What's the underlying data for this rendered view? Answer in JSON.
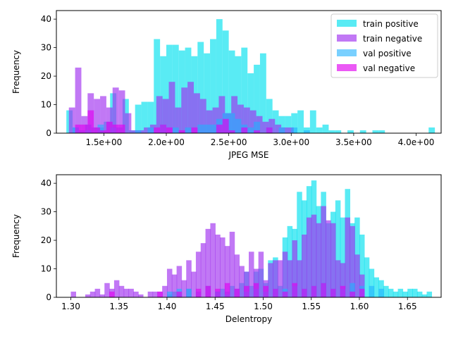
{
  "colors": {
    "train_positive": "#00e1ee",
    "train_negative": "#a030f0",
    "val_positive": "#20b0ff",
    "val_negative": "#e000f0"
  },
  "chart_data": [
    {
      "type": "histogram",
      "xlabel": "JPEG MSE",
      "ylabel": "Frequency",
      "xlim": [
        1.12,
        4.2
      ],
      "ylim": [
        0,
        43
      ],
      "xticks": [
        1.5,
        2.0,
        2.5,
        3.0,
        3.5,
        4.0
      ],
      "xtick_labels": [
        "1.5e+00",
        "2.0e+00",
        "2.5e+00",
        "3.0e+00",
        "3.5e+00",
        "4.0e+00"
      ],
      "yticks": [
        0,
        10,
        20,
        30,
        40
      ],
      "ytick_labels": [
        "0",
        "10",
        "20",
        "30",
        "40"
      ],
      "bin_width": 0.05,
      "legend": {
        "position": "top-right",
        "entries": [
          "train positive",
          "train negative",
          "val positive",
          "val negative"
        ]
      },
      "series": [
        {
          "name": "train positive",
          "x": [
            1.2,
            1.25,
            1.3,
            1.35,
            1.4,
            1.45,
            1.5,
            1.55,
            1.6,
            1.65,
            1.7,
            1.75,
            1.8,
            1.85,
            1.9,
            1.95,
            2.0,
            2.05,
            2.1,
            2.15,
            2.2,
            2.25,
            2.3,
            2.35,
            2.4,
            2.45,
            2.5,
            2.55,
            2.6,
            2.65,
            2.7,
            2.75,
            2.8,
            2.85,
            2.9,
            2.95,
            3.0,
            3.05,
            3.1,
            3.15,
            3.2,
            3.25,
            3.3,
            3.35,
            3.45,
            3.55,
            3.65,
            3.7,
            4.1
          ],
          "values": [
            8,
            2,
            1,
            3,
            2,
            2,
            4,
            14,
            2,
            12,
            1,
            10,
            11,
            11,
            33,
            27,
            31,
            31,
            29,
            30,
            27,
            32,
            28,
            33,
            40,
            36,
            29,
            27,
            30,
            21,
            24,
            28,
            12,
            8,
            6,
            6,
            7,
            8,
            2,
            8,
            2,
            3,
            1,
            1,
            1,
            1,
            1,
            1,
            2
          ]
        },
        {
          "name": "train negative",
          "x": [
            1.22,
            1.27,
            1.32,
            1.37,
            1.42,
            1.47,
            1.52,
            1.57,
            1.62,
            1.67,
            1.72,
            1.77,
            1.82,
            1.87,
            1.92,
            1.97,
            2.02,
            2.07,
            2.12,
            2.17,
            2.22,
            2.27,
            2.32,
            2.37,
            2.42,
            2.47,
            2.52,
            2.57,
            2.62,
            2.67,
            2.72,
            2.77,
            2.82,
            2.87,
            2.92,
            2.97
          ],
          "values": [
            9,
            23,
            6,
            14,
            12,
            13,
            9,
            16,
            15,
            7,
            1,
            1,
            2,
            3,
            13,
            12,
            18,
            9,
            16,
            18,
            14,
            12,
            8,
            9,
            13,
            7,
            13,
            10,
            9,
            8,
            6,
            4,
            5,
            3,
            2,
            2
          ]
        },
        {
          "name": "val positive",
          "x": [
            1.25,
            1.35,
            1.45,
            1.55,
            1.75,
            1.85,
            1.95,
            2.05,
            2.15,
            2.25,
            2.3,
            2.35,
            2.4,
            2.45,
            2.5,
            2.55,
            2.6,
            2.65,
            2.7,
            2.8,
            2.9,
            3.0,
            3.1
          ],
          "values": [
            2,
            1,
            3,
            2,
            1,
            2,
            3,
            2,
            2,
            3,
            3,
            3,
            5,
            7,
            7,
            5,
            3,
            2,
            4,
            2,
            2,
            2,
            1
          ]
        },
        {
          "name": "val negative",
          "x": [
            1.27,
            1.32,
            1.37,
            1.42,
            1.47,
            1.52,
            1.57,
            1.62,
            1.9,
            1.95,
            2.0,
            2.1,
            2.2,
            2.4,
            2.45,
            2.5,
            2.6,
            2.7,
            2.8
          ],
          "values": [
            3,
            3,
            8,
            2,
            1,
            4,
            3,
            3,
            2,
            3,
            2,
            1,
            2,
            3,
            5,
            1,
            2,
            1,
            2
          ]
        }
      ]
    },
    {
      "type": "histogram",
      "xlabel": "Delentropy",
      "ylabel": "Frequency",
      "xlim": [
        1.285,
        1.685
      ],
      "ylim": [
        0,
        43
      ],
      "xticks": [
        1.3,
        1.35,
        1.4,
        1.45,
        1.5,
        1.55,
        1.6,
        1.65
      ],
      "xtick_labels": [
        "1.30",
        "1.35",
        "1.40",
        "1.45",
        "1.50",
        "1.55",
        "1.60",
        "1.65"
      ],
      "yticks": [
        0,
        10,
        20,
        30,
        40
      ],
      "ytick_labels": [
        "0",
        "10",
        "20",
        "30",
        "40"
      ],
      "bin_width": 0.0055,
      "series": [
        {
          "name": "train positive",
          "x": [
            1.4,
            1.405,
            1.41,
            1.42,
            1.43,
            1.44,
            1.45,
            1.455,
            1.46,
            1.465,
            1.47,
            1.475,
            1.48,
            1.485,
            1.49,
            1.495,
            1.5,
            1.505,
            1.51,
            1.515,
            1.52,
            1.525,
            1.53,
            1.535,
            1.54,
            1.545,
            1.55,
            1.555,
            1.56,
            1.565,
            1.57,
            1.575,
            1.58,
            1.585,
            1.59,
            1.595,
            1.6,
            1.605,
            1.61,
            1.615,
            1.62,
            1.625,
            1.63,
            1.635,
            1.64,
            1.645,
            1.65,
            1.655,
            1.66,
            1.665,
            1.67
          ],
          "values": [
            1,
            2,
            1,
            3,
            2,
            4,
            2,
            3,
            2,
            4,
            3,
            5,
            9,
            4,
            9,
            10,
            5,
            13,
            14,
            4,
            21,
            25,
            24,
            37,
            34,
            39,
            41,
            32,
            37,
            26,
            30,
            34,
            28,
            38,
            26,
            28,
            22,
            14,
            10,
            7,
            6,
            4,
            3,
            2,
            3,
            2,
            3,
            3,
            2,
            1,
            2
          ]
        },
        {
          "name": "train negative",
          "x": [
            1.3,
            1.315,
            1.32,
            1.325,
            1.33,
            1.335,
            1.34,
            1.345,
            1.35,
            1.355,
            1.36,
            1.365,
            1.37,
            1.38,
            1.385,
            1.39,
            1.395,
            1.4,
            1.405,
            1.41,
            1.415,
            1.42,
            1.425,
            1.43,
            1.435,
            1.44,
            1.445,
            1.45,
            1.455,
            1.46,
            1.465,
            1.47,
            1.475,
            1.48,
            1.485,
            1.49,
            1.495,
            1.5,
            1.505,
            1.51,
            1.515,
            1.52,
            1.525,
            1.53,
            1.535,
            1.54,
            1.545,
            1.55,
            1.555,
            1.56,
            1.565,
            1.57,
            1.575,
            1.58,
            1.585,
            1.59,
            1.595,
            1.6
          ],
          "values": [
            2,
            1,
            2,
            3,
            1,
            5,
            3,
            6,
            4,
            3,
            3,
            2,
            1,
            2,
            2,
            2,
            4,
            10,
            8,
            11,
            6,
            13,
            9,
            16,
            19,
            24,
            26,
            22,
            21,
            18,
            23,
            15,
            11,
            9,
            16,
            10,
            16,
            6,
            12,
            13,
            13,
            16,
            13,
            20,
            13,
            22,
            28,
            29,
            26,
            32,
            27,
            26,
            13,
            12,
            28,
            25,
            15,
            8
          ]
        },
        {
          "name": "val positive",
          "x": [
            1.4,
            1.41,
            1.42,
            1.45,
            1.46,
            1.48,
            1.49,
            1.5,
            1.51,
            1.52,
            1.53,
            1.54,
            1.55,
            1.56,
            1.57,
            1.58,
            1.59,
            1.6,
            1.61,
            1.62
          ],
          "values": [
            2,
            3,
            3,
            2,
            1,
            2,
            3,
            2,
            3,
            3,
            4,
            3,
            4,
            5,
            3,
            3,
            5,
            4,
            4,
            3
          ]
        },
        {
          "name": "val negative",
          "x": [
            1.34,
            1.39,
            1.41,
            1.43,
            1.44,
            1.45,
            1.46,
            1.47,
            1.48,
            1.49,
            1.5,
            1.51,
            1.52,
            1.53,
            1.54,
            1.55,
            1.56,
            1.57,
            1.58,
            1.59,
            1.6
          ],
          "values": [
            2,
            2,
            2,
            3,
            4,
            3,
            5,
            3,
            4,
            5,
            4,
            3,
            2,
            5,
            3,
            4,
            5,
            3,
            4,
            2,
            3
          ]
        }
      ]
    }
  ]
}
